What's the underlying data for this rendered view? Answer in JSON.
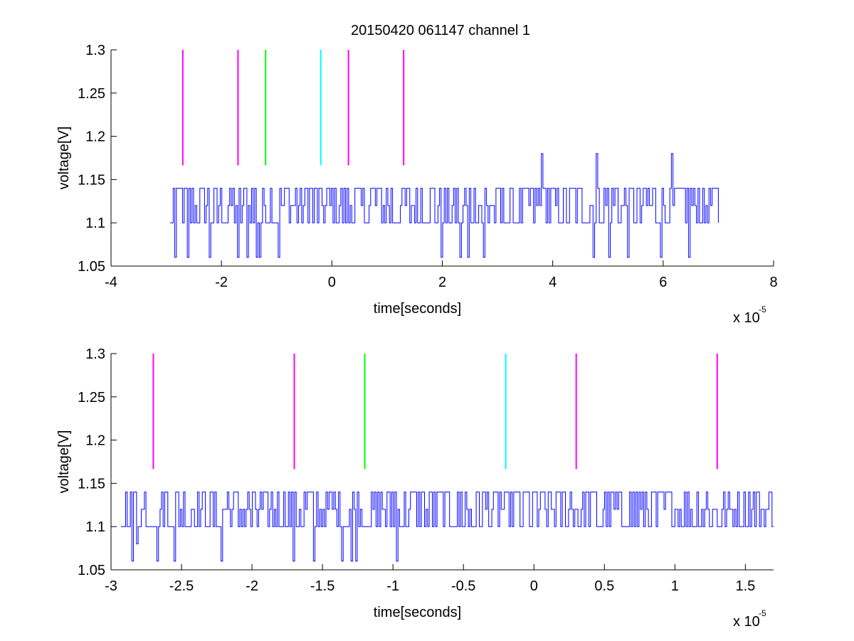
{
  "figure": {
    "title": "20150420 061147 channel 1",
    "background": "#ffffff"
  },
  "chart_data": [
    {
      "type": "line",
      "title": "20150420 061147 channel 1",
      "xlabel": "time[seconds]",
      "ylabel": "voltage[V]",
      "x_scale_label": "x 10",
      "x_scale_exponent": "-5",
      "xlim": [
        -4,
        8
      ],
      "ylim": [
        1.05,
        1.3
      ],
      "xticks": [
        -4,
        -2,
        0,
        2,
        4,
        6,
        8
      ],
      "xtick_labels": [
        "-4",
        "-2",
        "0",
        "2",
        "4",
        "6",
        "8"
      ],
      "yticks": [
        1.05,
        1.1,
        1.15,
        1.2,
        1.25,
        1.3
      ],
      "ytick_labels": [
        "1.05",
        "1.1",
        "1.15",
        "1.2",
        "1.25",
        "1.3"
      ],
      "grid": false,
      "markers": [
        {
          "x": -2.7,
          "y": [
            1.1665,
            1.3
          ],
          "color": "#ff00ff"
        },
        {
          "x": -1.7,
          "y": [
            1.1665,
            1.3
          ],
          "color": "#ff00ff"
        },
        {
          "x": -1.2,
          "y": [
            1.1665,
            1.3
          ],
          "color": "#00ff00"
        },
        {
          "x": -0.2,
          "y": [
            1.1665,
            1.3
          ],
          "color": "#00ffff"
        },
        {
          "x": 0.3,
          "y": [
            1.1665,
            1.3
          ],
          "color": "#ff00ff"
        },
        {
          "x": 1.3,
          "y": [
            1.1665,
            1.3
          ],
          "color": "#ff00ff"
        }
      ],
      "series": [
        {
          "color": "#0000ff",
          "x_range": [
            -2.93,
            7.0
          ],
          "levels": [
            1.1,
            1.12,
            1.14
          ],
          "dips": [
            {
              "x": -2.85,
              "y": 1.06
            },
            {
              "x": -2.62,
              "y": 1.06
            },
            {
              "x": -2.22,
              "y": 1.06
            },
            {
              "x": -1.71,
              "y": 1.06
            },
            {
              "x": -1.55,
              "y": 1.06
            },
            {
              "x": -1.36,
              "y": 1.06
            },
            {
              "x": -1.3,
              "y": 1.06
            },
            {
              "x": -0.98,
              "y": 1.06
            },
            {
              "x": 1.97,
              "y": 1.06
            },
            {
              "x": 2.33,
              "y": 1.06
            },
            {
              "x": 2.45,
              "y": 1.06
            },
            {
              "x": 2.75,
              "y": 1.06
            },
            {
              "x": 4.73,
              "y": 1.06
            },
            {
              "x": 5.0,
              "y": 1.06
            },
            {
              "x": 5.35,
              "y": 1.06
            },
            {
              "x": 5.95,
              "y": 1.06
            },
            {
              "x": 6.47,
              "y": 1.06
            }
          ],
          "spikes": [
            {
              "x": 3.8,
              "y": 1.18
            },
            {
              "x": 4.8,
              "y": 1.18
            },
            {
              "x": 6.15,
              "y": 1.18
            }
          ]
        }
      ]
    },
    {
      "type": "line",
      "title": "",
      "xlabel": "time[seconds]",
      "ylabel": "voltage[V]",
      "x_scale_label": "x 10",
      "x_scale_exponent": "-5",
      "xlim": [
        -3.0,
        1.7
      ],
      "ylim": [
        1.05,
        1.3
      ],
      "xticks": [
        -3,
        -2.5,
        -2,
        -1.5,
        -1,
        -0.5,
        0,
        0.5,
        1,
        1.5
      ],
      "xtick_labels": [
        "-3",
        "-2.5",
        "-2",
        "-1.5",
        "-1",
        "-0.5",
        "0",
        "0.5",
        "1",
        "1.5"
      ],
      "yticks": [
        1.05,
        1.1,
        1.15,
        1.2,
        1.25,
        1.3
      ],
      "ytick_labels": [
        "1.05",
        "1.1",
        "1.15",
        "1.2",
        "1.25",
        "1.3"
      ],
      "grid": false,
      "markers": [
        {
          "x": -2.7,
          "y": [
            1.1665,
            1.3
          ],
          "color": "#ff00ff"
        },
        {
          "x": -1.7,
          "y": [
            1.1665,
            1.3
          ],
          "color": "#ff00ff"
        },
        {
          "x": -1.2,
          "y": [
            1.1665,
            1.3
          ],
          "color": "#00ff00"
        },
        {
          "x": -0.2,
          "y": [
            1.1665,
            1.3
          ],
          "color": "#00ffff"
        },
        {
          "x": 0.3,
          "y": [
            1.1665,
            1.3
          ],
          "color": "#ff00ff"
        },
        {
          "x": 1.3,
          "y": [
            1.1665,
            1.3
          ],
          "color": "#ff00ff"
        }
      ],
      "series": [
        {
          "color": "#0000ff",
          "x_range": [
            -2.93,
            1.7
          ],
          "levels": [
            1.1,
            1.12,
            1.14
          ],
          "dips": [
            {
              "x": -2.85,
              "y": 1.06
            },
            {
              "x": -2.82,
              "y": 1.08
            },
            {
              "x": -2.67,
              "y": 1.06
            },
            {
              "x": -2.55,
              "y": 1.06
            },
            {
              "x": -2.22,
              "y": 1.06
            },
            {
              "x": -1.71,
              "y": 1.06
            },
            {
              "x": -1.56,
              "y": 1.06
            },
            {
              "x": -1.36,
              "y": 1.06
            },
            {
              "x": -1.3,
              "y": 1.06
            },
            {
              "x": -1.27,
              "y": 1.06
            },
            {
              "x": -0.98,
              "y": 1.06
            }
          ],
          "spikes": []
        }
      ]
    }
  ]
}
